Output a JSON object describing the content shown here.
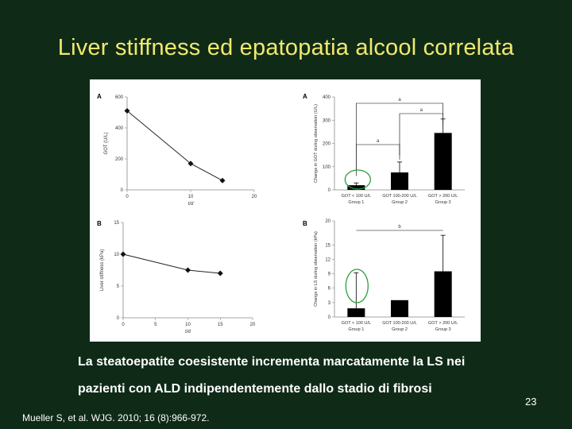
{
  "slide": {
    "title": "Liver stiffness ed epatopatia alcool correlata",
    "caption_line1": "La steatoepatite coesistente incrementa marcatamente la LS nei",
    "caption_line2": "pazienti con ALD indipendentemente dallo stadio di fibrosi",
    "reference": "Mueller S, et al. WJG. 2010; 16 (8):966-972.",
    "page_number": "23"
  },
  "colors": {
    "background": "#0f2b18",
    "title": "#f2e86e",
    "text": "#ffffff",
    "highlight": "#2e9e3e"
  },
  "chart_data": [
    {
      "panel": "A",
      "type": "line",
      "x": [
        0,
        10,
        15
      ],
      "y": [
        510,
        170,
        60
      ],
      "xlabel": "t/d",
      "ylabel": "GOT (U/L)",
      "xticks": [
        0,
        10,
        20
      ],
      "yticks": [
        0,
        200,
        400,
        600
      ],
      "xlim": [
        0,
        20
      ],
      "ylim": [
        0,
        600
      ]
    },
    {
      "panel": "A",
      "type": "bar",
      "categories": [
        "GOT < 100 U/L",
        "GOT 100-200 U/L",
        "GOT > 200 U/L"
      ],
      "groups": [
        "Group 1",
        "Group 2",
        "Group 3"
      ],
      "values": [
        20,
        75,
        245
      ],
      "errors": [
        10,
        45,
        60
      ],
      "ylabel": "Change in GOT during observation (U/L)",
      "yticks": [
        0,
        100,
        200,
        300,
        400
      ],
      "ylim": [
        0,
        400
      ],
      "significance": [
        "a",
        "a",
        "a"
      ]
    },
    {
      "panel": "B",
      "type": "line",
      "x": [
        0,
        10,
        15
      ],
      "y": [
        10,
        7.5,
        7
      ],
      "xlabel": "t/d",
      "ylabel": "Liver stiffness (kPa)",
      "xticks": [
        0,
        5,
        10,
        15,
        20
      ],
      "yticks": [
        0,
        5,
        10,
        15
      ],
      "xlim": [
        0,
        20
      ],
      "ylim": [
        0,
        15
      ]
    },
    {
      "panel": "B",
      "type": "bar",
      "categories": [
        "GOT < 100 U/L",
        "GOT 100-200 U/L",
        "GOT > 200 U/L"
      ],
      "groups": [
        "Group 1",
        "Group 2",
        "Group 3"
      ],
      "values": [
        1.8,
        3.5,
        9.5
      ],
      "errors": [
        7.4,
        0,
        7.5
      ],
      "ylabel": "Change in LS during observation (kPa)",
      "yticks": [
        0,
        3,
        6,
        9,
        12,
        15,
        20
      ],
      "ylim": [
        0,
        20
      ],
      "significance": [
        "b"
      ]
    }
  ]
}
